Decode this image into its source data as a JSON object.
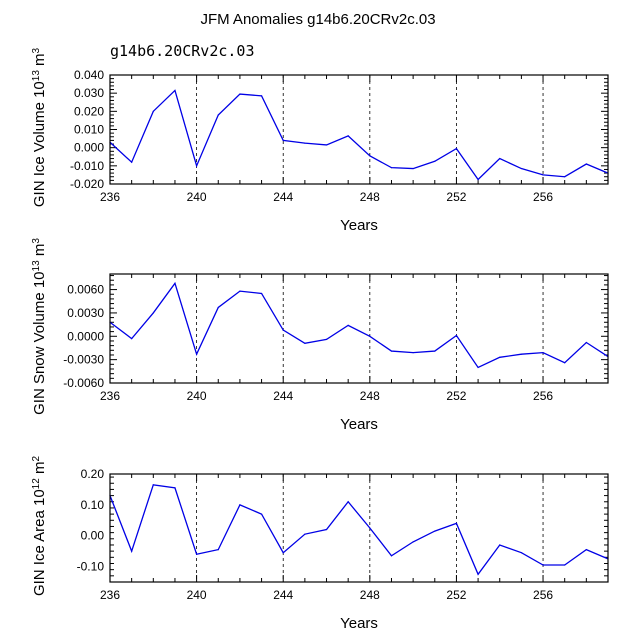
{
  "title": "JFM Anomalies g14b6.20CRv2c.03",
  "subtitle": "g14b6.20CRv2c.03",
  "colors": {
    "line": "#0000e6",
    "subtitle": "#4646e0",
    "axis": "#000000",
    "grid": "#000000"
  },
  "chart_data": [
    {
      "type": "line",
      "name": "ice-volume",
      "ylabel": "GIN Ice Volume 10^13 m^3",
      "ylabel_parts": {
        "base": "GIN Ice Volume 10",
        "exp1": "13",
        "mid": " m",
        "exp2": "3"
      },
      "xlabel": "Years",
      "xlim": [
        236,
        259
      ],
      "ylim": [
        -0.02,
        0.04
      ],
      "yticks": [
        -0.02,
        -0.01,
        0.0,
        0.01,
        0.02,
        0.03,
        0.04
      ],
      "ytick_labels": [
        "-0.020",
        "-0.010",
        "0.000",
        "0.010",
        "0.020",
        "0.030",
        "0.040"
      ],
      "xticks": [
        236,
        240,
        244,
        248,
        252,
        256
      ],
      "xtick_labels": [
        "236",
        "240",
        "244",
        "248",
        "252",
        "256"
      ],
      "grid_x": [
        240,
        244,
        248,
        252,
        256
      ],
      "x": [
        236,
        237,
        238,
        239,
        240,
        241,
        242,
        243,
        244,
        245,
        246,
        247,
        248,
        249,
        250,
        251,
        252,
        253,
        254,
        255,
        256,
        257,
        258,
        259
      ],
      "values": [
        0.003,
        -0.008,
        0.02,
        0.0315,
        -0.01,
        0.018,
        0.0295,
        0.0285,
        0.004,
        0.0025,
        0.0015,
        0.0065,
        -0.0045,
        -0.011,
        -0.0115,
        -0.0075,
        -0.0005,
        -0.0175,
        -0.006,
        -0.0115,
        -0.015,
        -0.016,
        -0.009,
        -0.014
      ]
    },
    {
      "type": "line",
      "name": "snow-volume",
      "ylabel": "GIN Snow Volume 10^13 m^3",
      "ylabel_parts": {
        "base": "GIN Snow Volume 10",
        "exp1": "13",
        "mid": " m",
        "exp2": "3"
      },
      "xlabel": "Years",
      "xlim": [
        236,
        259
      ],
      "ylim": [
        -0.006,
        0.008
      ],
      "yticks": [
        -0.006,
        -0.003,
        0.0,
        0.003,
        0.006
      ],
      "ytick_labels": [
        "-0.0060",
        "-0.0030",
        "0.0000",
        "0.0030",
        "0.0060"
      ],
      "xticks": [
        236,
        240,
        244,
        248,
        252,
        256
      ],
      "xtick_labels": [
        "236",
        "240",
        "244",
        "248",
        "252",
        "256"
      ],
      "grid_x": [
        240,
        244,
        248,
        252,
        256
      ],
      "x": [
        236,
        237,
        238,
        239,
        240,
        241,
        242,
        243,
        244,
        245,
        246,
        247,
        248,
        249,
        250,
        251,
        252,
        253,
        254,
        255,
        256,
        257,
        258,
        259
      ],
      "values": [
        0.0018,
        -0.0003,
        0.003,
        0.0068,
        -0.0023,
        0.0037,
        0.0058,
        0.0055,
        0.0008,
        -0.0009,
        -0.0004,
        0.0014,
        0.0,
        -0.0019,
        -0.0021,
        -0.0019,
        0.0001,
        -0.004,
        -0.0027,
        -0.0023,
        -0.0021,
        -0.0034,
        -0.0008,
        -0.0026
      ]
    },
    {
      "type": "line",
      "name": "ice-area",
      "ylabel": "GIN Ice Area 10^12 m^2",
      "ylabel_parts": {
        "base": "GIN Ice Area 10",
        "exp1": "12",
        "mid": " m",
        "exp2": "2"
      },
      "xlabel": "Years",
      "xlim": [
        236,
        259
      ],
      "ylim": [
        -0.15,
        0.2
      ],
      "yticks": [
        -0.1,
        0.0,
        0.1,
        0.2
      ],
      "ytick_labels": [
        "-0.10",
        "0.00",
        "0.10",
        "0.20"
      ],
      "xticks": [
        236,
        240,
        244,
        248,
        252,
        256
      ],
      "xtick_labels": [
        "236",
        "240",
        "244",
        "248",
        "252",
        "256"
      ],
      "grid_x": [
        240,
        244,
        248,
        252,
        256
      ],
      "x": [
        236,
        237,
        238,
        239,
        240,
        241,
        242,
        243,
        244,
        245,
        246,
        247,
        248,
        249,
        250,
        251,
        252,
        253,
        254,
        255,
        256,
        257,
        258,
        259
      ],
      "values": [
        0.13,
        -0.05,
        0.165,
        0.155,
        -0.06,
        -0.045,
        0.1,
        0.07,
        -0.055,
        0.005,
        0.02,
        0.11,
        0.025,
        -0.065,
        -0.02,
        0.015,
        0.04,
        -0.125,
        -0.03,
        -0.055,
        -0.095,
        -0.095,
        -0.045,
        -0.075
      ]
    }
  ]
}
